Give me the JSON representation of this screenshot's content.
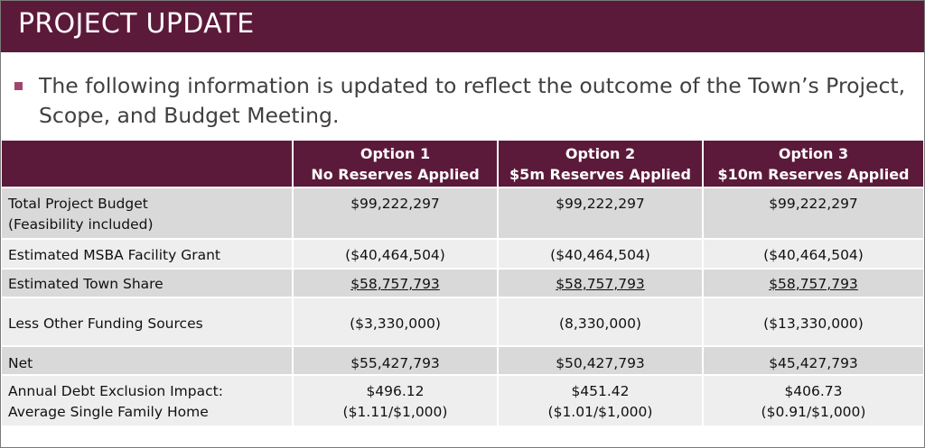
{
  "slide": {
    "title": "PROJECT UPDATE",
    "bullet": "The following information is updated to reflect the outcome of the Town’s Project, Scope, and Budget Meeting."
  },
  "table": {
    "headers": [
      {
        "line1": "",
        "line2": ""
      },
      {
        "line1": "Option 1",
        "line2": "No Reserves Applied"
      },
      {
        "line1": "Option 2",
        "line2": "$5m Reserves Applied"
      },
      {
        "line1": "Option 3",
        "line2": "$10m Reserves Applied"
      }
    ],
    "rows": [
      {
        "label": [
          "Total Project Budget",
          "(Feasibility included)"
        ],
        "values": [
          [
            "$99,222,297"
          ],
          [
            "$99,222,297"
          ],
          [
            "$99,222,297"
          ]
        ]
      },
      {
        "label": [
          "Estimated MSBA Facility Grant"
        ],
        "values": [
          [
            "($40,464,504)"
          ],
          [
            "($40,464,504)"
          ],
          [
            "($40,464,504)"
          ]
        ]
      },
      {
        "label": [
          "Estimated Town Share"
        ],
        "values": [
          [
            "$58,757,793"
          ],
          [
            "$58,757,793"
          ],
          [
            "$58,757,793"
          ]
        ]
      },
      {
        "label": [
          "Less Other Funding Sources"
        ],
        "values": [
          [
            "($3,330,000)"
          ],
          [
            "(8,330,000)"
          ],
          [
            "($13,330,000)"
          ]
        ]
      },
      {
        "label": [
          "Net"
        ],
        "values": [
          [
            "$55,427,793"
          ],
          [
            "$50,427,793"
          ],
          [
            "$45,427,793"
          ]
        ]
      },
      {
        "label": [
          "Annual Debt Exclusion Impact:",
          "Average Single Family Home"
        ],
        "values": [
          [
            "$496.12",
            "($1.11/$1,000)"
          ],
          [
            "$451.42",
            "($1.01/$1,000)"
          ],
          [
            "$406.73",
            "($0.91/$1,000)"
          ]
        ]
      }
    ]
  },
  "colors": {
    "brand_maroon": "#5c1a3a",
    "bullet_marker": "#a0456e",
    "row_shade": "#d9d9d9",
    "row_light": "#eeeeee"
  }
}
